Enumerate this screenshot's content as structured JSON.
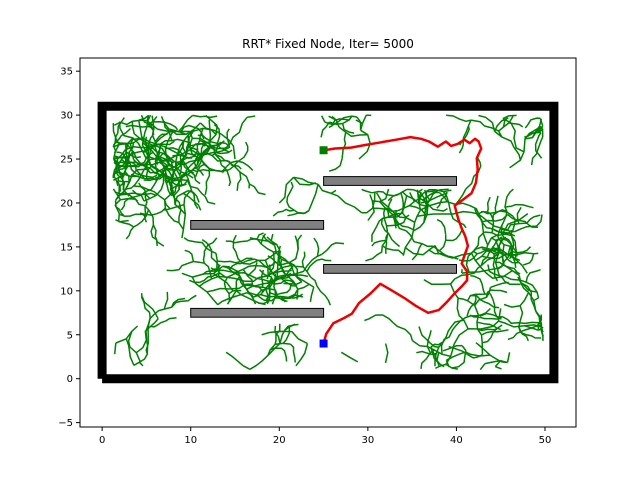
{
  "chart_data": {
    "type": "line",
    "title": "RRT* Fixed Node, Iter= 5000",
    "xlabel": "",
    "ylabel": "",
    "xlim": [
      -2.5,
      53.5
    ],
    "ylim": [
      -5.5,
      36.5
    ],
    "x_ticks": [
      0,
      10,
      20,
      30,
      40,
      50
    ],
    "y_ticks": [
      -5,
      0,
      5,
      10,
      15,
      20,
      25,
      30,
      35
    ],
    "grid": false,
    "legend": "none",
    "colors": {
      "boundary": "#000000",
      "obstacle_fill": "#808080",
      "obstacle_edge": "#000000",
      "tree": "#008000",
      "path": "#ee0000",
      "start": "#0000ff",
      "goal": "#008000"
    },
    "boundary": {
      "x": [
        0,
        51,
        51,
        0,
        0
      ],
      "y": [
        0,
        0,
        31,
        31,
        0
      ]
    },
    "obstacles": [
      {
        "x": 10,
        "y": 7,
        "width": 15,
        "height": 1
      },
      {
        "x": 10,
        "y": 17,
        "width": 15,
        "height": 1
      },
      {
        "x": 25,
        "y": 12,
        "width": 15,
        "height": 1
      },
      {
        "x": 25,
        "y": 22,
        "width": 15,
        "height": 1
      }
    ],
    "start": {
      "x": 25,
      "y": 4
    },
    "goal": {
      "x": 25,
      "y": 26
    },
    "path": {
      "x": [
        25,
        25.3,
        26.1,
        27.3,
        28.2,
        29.0,
        30.3,
        31.4,
        32.6,
        34.1,
        35.4,
        36.8,
        38.0,
        38.9,
        39.7,
        40.6,
        41.2,
        41.2,
        40.6,
        40.9,
        41.3,
        41.0,
        40.6,
        40.2,
        39.8,
        40.5,
        41.7,
        42.2,
        42.4,
        42.3,
        42.8,
        42.5,
        42.1,
        41.5,
        40.9,
        40.1,
        39.4,
        38.8,
        37.9,
        36.9,
        36.0,
        34.8,
        33.2,
        31.5,
        29.7,
        28.1,
        26.3,
        25
      ],
      "y": [
        4.0,
        5.1,
        6.3,
        6.9,
        7.4,
        8.6,
        9.7,
        10.8,
        10.1,
        9.2,
        8.3,
        7.5,
        7.8,
        8.7,
        9.6,
        10.5,
        11.2,
        12.2,
        13.1,
        14.0,
        15.1,
        16.2,
        17.1,
        18.2,
        19.7,
        20.2,
        21.1,
        22.3,
        23.8,
        25.1,
        26.2,
        27.0,
        27.3,
        26.8,
        27.2,
        26.7,
        26.5,
        27.0,
        26.4,
        27.0,
        27.3,
        27.5,
        27.2,
        26.9,
        26.6,
        26.3,
        26.2,
        26.0
      ]
    },
    "tree_stats": {
      "iterations": 5000
    }
  }
}
